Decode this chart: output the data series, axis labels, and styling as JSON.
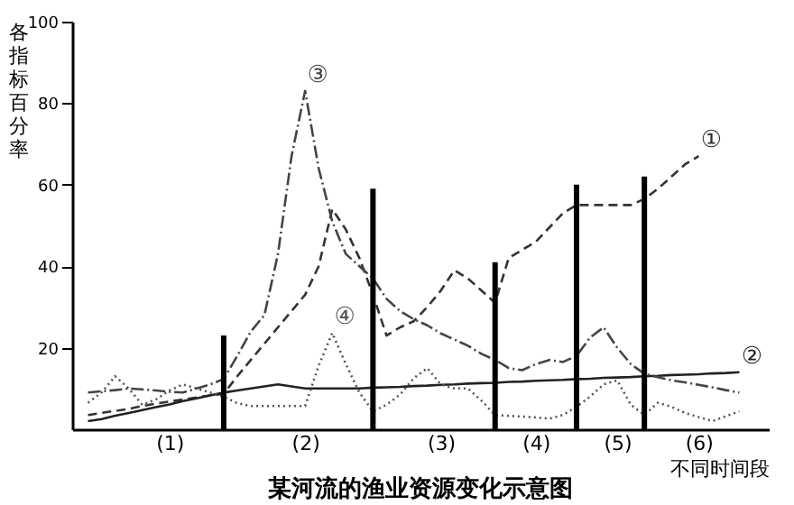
{
  "chart_data": {
    "type": "line",
    "title": "某河流的渔业资源变化示意图",
    "xlabel": "不同时间段",
    "ylabel": "各指标百分率",
    "categories": [
      null,
      null,
      null,
      null,
      null,
      null,
      "(1)",
      null,
      null,
      null,
      null,
      null,
      null,
      null,
      null,
      null,
      "(2)",
      null,
      null,
      null,
      null,
      null,
      null,
      null,
      null,
      null,
      "(3)",
      null,
      null,
      null,
      null,
      null,
      null,
      "(4)",
      null,
      null,
      null,
      null,
      null,
      "(5)",
      null,
      null,
      null,
      null,
      null,
      "(6)",
      null,
      null,
      null,
      null
    ],
    "ylim": [
      0,
      100
    ],
    "yticks": [
      20,
      40,
      60,
      80,
      100
    ],
    "grid": false,
    "series": [
      {
        "name": "①",
        "line_style": "dashed",
        "color": "#333333",
        "values": [
          3.5,
          4,
          4.5,
          5,
          5.7,
          6.3,
          6.8,
          7.3,
          7.8,
          8.3,
          8.7,
          13,
          17,
          21,
          25,
          29,
          33,
          40,
          54,
          49,
          42,
          33,
          23,
          25,
          26.5,
          30,
          34,
          39,
          37,
          34,
          31,
          42,
          44,
          46,
          49.5,
          53,
          55,
          55,
          55,
          55,
          55,
          56.5,
          59,
          62,
          65,
          67,
          null,
          null,
          null,
          null
        ]
      },
      {
        "name": "②",
        "line_style": "solid",
        "color": "#222222",
        "values": [
          2,
          2.5,
          3.3,
          4,
          4.7,
          5.4,
          6.1,
          6.9,
          7.6,
          8.3,
          9,
          9.5,
          10,
          10.5,
          11,
          10.5,
          10,
          10,
          10,
          10,
          10,
          10.2,
          10.3,
          10.4,
          10.6,
          10.7,
          10.9,
          11,
          11.2,
          11.3,
          11.4,
          11.6,
          11.7,
          11.9,
          12,
          12.1,
          12.3,
          12.4,
          12.6,
          12.7,
          12.8,
          13,
          13.1,
          13.3,
          13.4,
          13.5,
          13.7,
          13.8,
          14,
          null
        ]
      },
      {
        "name": "③",
        "line_style": "dashdot",
        "color": "#444444",
        "values": [
          9,
          9.3,
          9.6,
          10,
          9.8,
          9.5,
          9.2,
          9,
          10,
          11,
          12.3,
          18,
          24,
          28,
          43,
          67,
          83,
          64,
          51,
          43,
          40,
          37,
          32,
          29,
          27,
          25.5,
          23.5,
          22,
          20.5,
          18.5,
          17,
          15,
          14.5,
          16,
          17,
          16.5,
          18,
          22.5,
          25,
          20,
          16,
          13.6,
          12.8,
          12,
          11.5,
          10.9,
          10.3,
          9.6,
          9,
          null
        ]
      },
      {
        "name": "④",
        "line_style": "dotted",
        "color": "#555555",
        "values": [
          6.5,
          9,
          13,
          10,
          6,
          7.3,
          9.5,
          11,
          10,
          9,
          8,
          6.4,
          5.7,
          5.7,
          5.7,
          5.7,
          5.7,
          15.6,
          23.6,
          16,
          9,
          4.4,
          6,
          8.5,
          12.5,
          15,
          11,
          10,
          10,
          7,
          3.5,
          3.3,
          3.1,
          2.9,
          2.6,
          3.5,
          5.5,
          8,
          11,
          12,
          6,
          3.5,
          6.5,
          5.5,
          4,
          3,
          2,
          3.2,
          4.4,
          null
        ]
      },
      {
        "type": "bar",
        "color": "#000000",
        "values": [
          null,
          null,
          null,
          null,
          null,
          null,
          null,
          null,
          null,
          null,
          23,
          null,
          null,
          null,
          null,
          null,
          null,
          null,
          null,
          null,
          null,
          59,
          null,
          null,
          null,
          null,
          null,
          null,
          null,
          null,
          41,
          null,
          null,
          null,
          null,
          null,
          60,
          null,
          null,
          null,
          null,
          62,
          null,
          null,
          null,
          null,
          null,
          null,
          null,
          null
        ]
      }
    ]
  }
}
